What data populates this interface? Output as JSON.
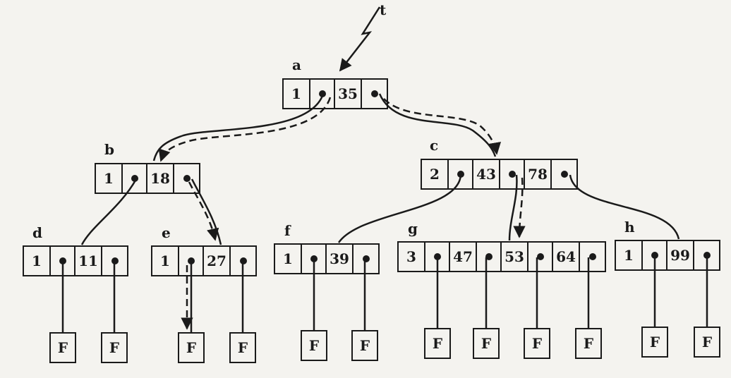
{
  "root_pointer": "t",
  "nodes": {
    "a": {
      "label": "a",
      "count": "1",
      "keys": [
        "35"
      ]
    },
    "b": {
      "label": "b",
      "count": "1",
      "keys": [
        "18"
      ]
    },
    "c": {
      "label": "c",
      "count": "2",
      "keys": [
        "43",
        "78"
      ]
    },
    "d": {
      "label": "d",
      "count": "1",
      "keys": [
        "11"
      ]
    },
    "e": {
      "label": "e",
      "count": "1",
      "keys": [
        "27"
      ]
    },
    "f": {
      "label": "f",
      "count": "1",
      "keys": [
        "39"
      ]
    },
    "g": {
      "label": "g",
      "count": "3",
      "keys": [
        "47",
        "53",
        "64"
      ]
    },
    "h": {
      "label": "h",
      "count": "1",
      "keys": [
        "99"
      ]
    }
  },
  "leaf_label": "F",
  "edges": [
    {
      "from": "a",
      "to": "b"
    },
    {
      "from": "a",
      "to": "c"
    },
    {
      "from": "b",
      "to": "d"
    },
    {
      "from": "b",
      "to": "e"
    },
    {
      "from": "c",
      "to": "f"
    },
    {
      "from": "c",
      "to": "g"
    },
    {
      "from": "c",
      "to": "h"
    }
  ],
  "search_path": [
    "a",
    "c",
    "g"
  ],
  "search_path_alt": [
    "a",
    "b",
    "e",
    "F"
  ]
}
